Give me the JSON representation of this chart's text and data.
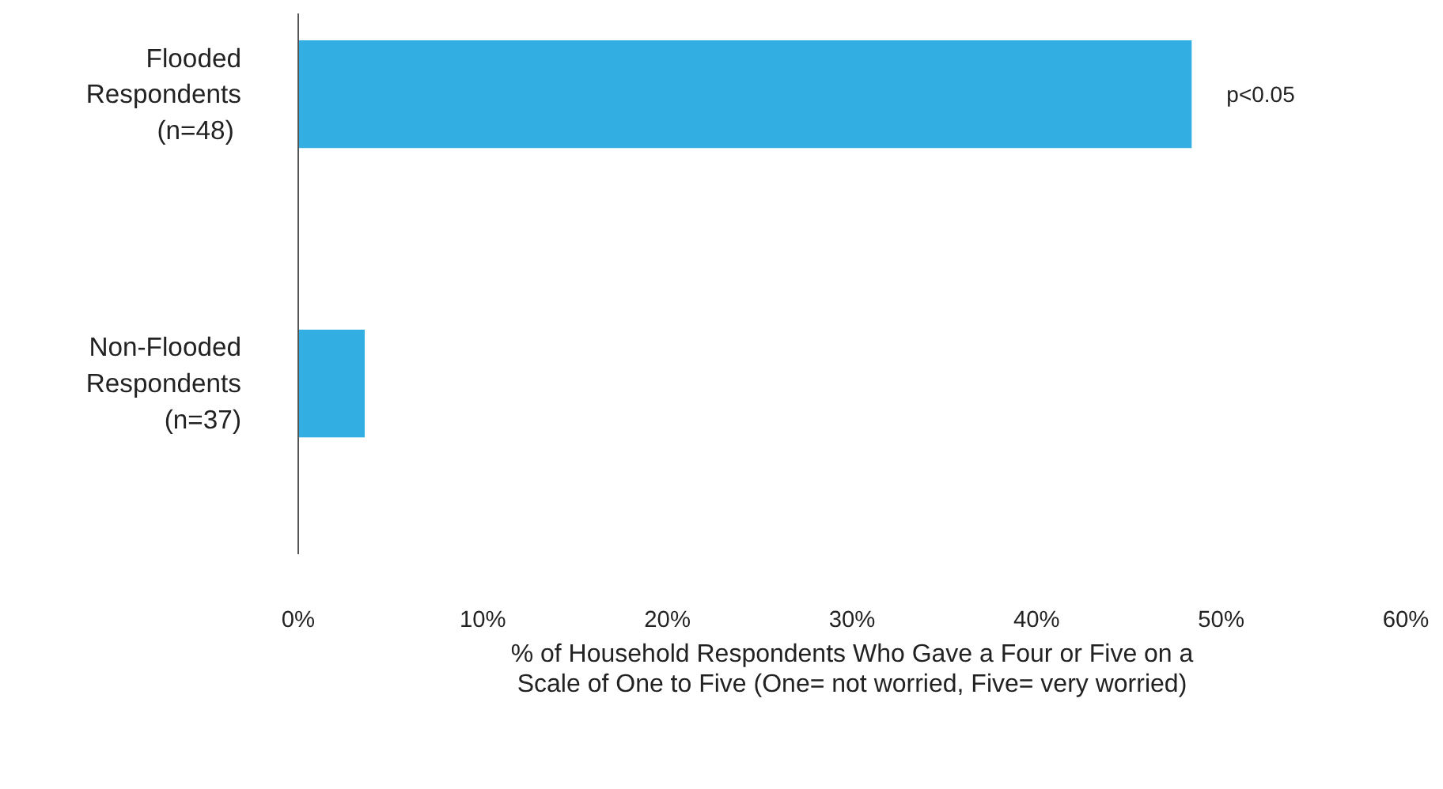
{
  "chart_data": {
    "type": "bar",
    "orientation": "horizontal",
    "categories": [
      "Flooded\nRespondents\n (n=48)",
      "Non-Flooded\nRespondents\n(n=37)"
    ],
    "values": [
      48.4,
      3.6
    ],
    "color": "#33aee3",
    "xlim": [
      0,
      60
    ],
    "xticks": [
      {
        "value": 0,
        "label": "0%"
      },
      {
        "value": 10,
        "label": "10%"
      },
      {
        "value": 20,
        "label": "20%"
      },
      {
        "value": 30,
        "label": "30%"
      },
      {
        "value": 40,
        "label": "40%"
      },
      {
        "value": 50,
        "label": "50%"
      },
      {
        "value": 60,
        "label": "60%"
      }
    ],
    "xlabel": "% of Household Respondents Who Gave a Four or Five on a Scale of One to Five (One= not worried, Five= very worried)",
    "annotations": [
      "p<0.05"
    ],
    "grid": false
  }
}
